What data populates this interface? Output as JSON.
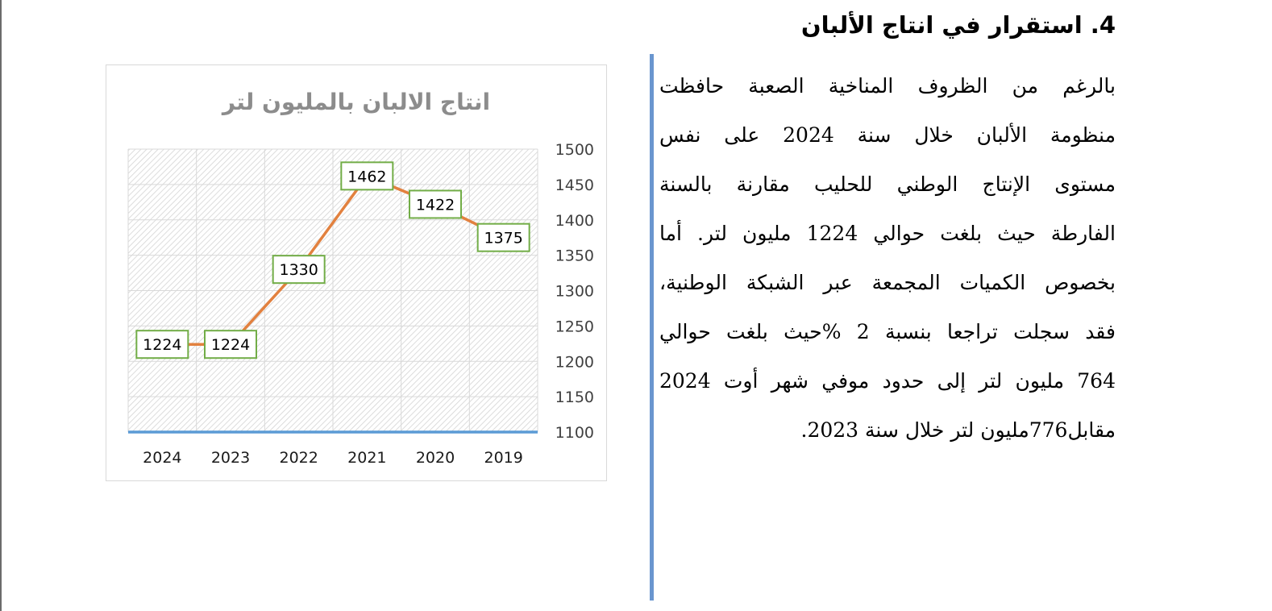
{
  "document": {
    "heading": "4. استقرار في انتاج الألبان",
    "paragraph_lines": [
      "بالرغم من الظروف المناخية الصعبة حافظت",
      "منظومة الألبان خلال سنة 2024 على نفس",
      "مستوى الإنتاج الوطني للحليب مقارنة بالسنة",
      "الفارطة حيث بلغت حوالي 1224 مليون لتر. أما",
      "بخصوص الكميات المجمعة عبر الشبكة الوطنية،",
      "فقد سجلت تراجعا بنسبة 2 %حيث بلغت حوالي",
      "764 مليون لتر إلى حدود موفي شهر أوت 2024",
      "مقابل776مليون لتر خلال سنة 2023."
    ]
  },
  "chart_data": {
    "type": "line",
    "title": "انتاج الالبان بالمليون لتر",
    "categories": [
      "2019",
      "2020",
      "2021",
      "2022",
      "2023",
      "2024"
    ],
    "series": [
      {
        "values": [
          1375,
          1422,
          1462,
          1330,
          1224,
          1224
        ]
      }
    ],
    "data_labels": [
      "1375",
      "1422",
      "1462",
      "1330",
      "1224",
      "1224"
    ],
    "x_axis_direction": "right-to-left",
    "y_axis_position": "right",
    "ylim": [
      1100,
      1500
    ],
    "y_ticks": [
      "1100",
      "1150",
      "1200",
      "1250",
      "1300",
      "1350",
      "1400",
      "1450",
      "1500"
    ],
    "xlabel": "",
    "ylabel": "",
    "grid": true,
    "plot_area_pattern": "diagonal-hatch",
    "legend": "none",
    "colors": {
      "line": "#e2813f",
      "label_border": "#72ad47",
      "baseline": "#5b9bd5",
      "grid": "#d9d9d9",
      "hatch": "#d4d4d4",
      "title": "#8c8c8c"
    }
  }
}
